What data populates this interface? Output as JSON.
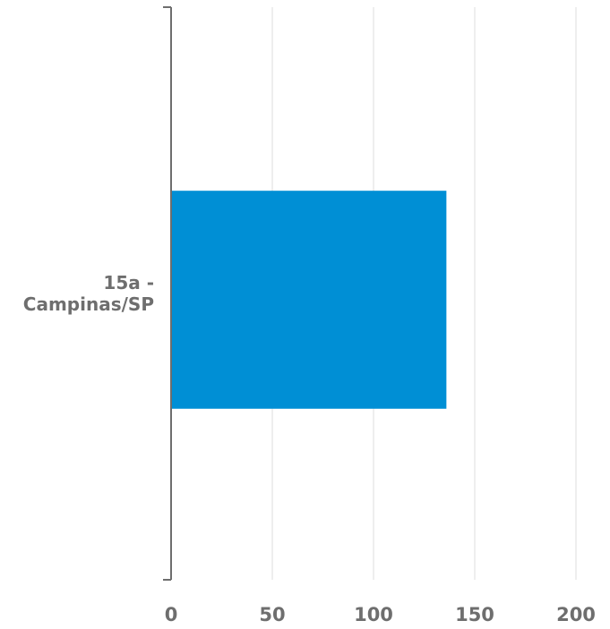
{
  "chart_data": {
    "type": "bar",
    "orientation": "horizontal",
    "categories": [
      "15a - Campinas/SP"
    ],
    "category_label_lines": [
      [
        "15a -",
        "Campinas/SP"
      ]
    ],
    "values": [
      136
    ],
    "xlim": [
      0,
      200
    ],
    "x_ticks": [
      0,
      50,
      100,
      150,
      200
    ],
    "x_tick_labels": [
      "0",
      "50",
      "100",
      "150",
      "200"
    ],
    "title": "",
    "xlabel": "",
    "ylabel": "",
    "grid": "vertical",
    "legend": "none",
    "colors": {
      "bar": "#008fd5",
      "grid": "#e3e3e3",
      "axis": "#6e6e6e",
      "text": "#6e6e6e"
    }
  }
}
